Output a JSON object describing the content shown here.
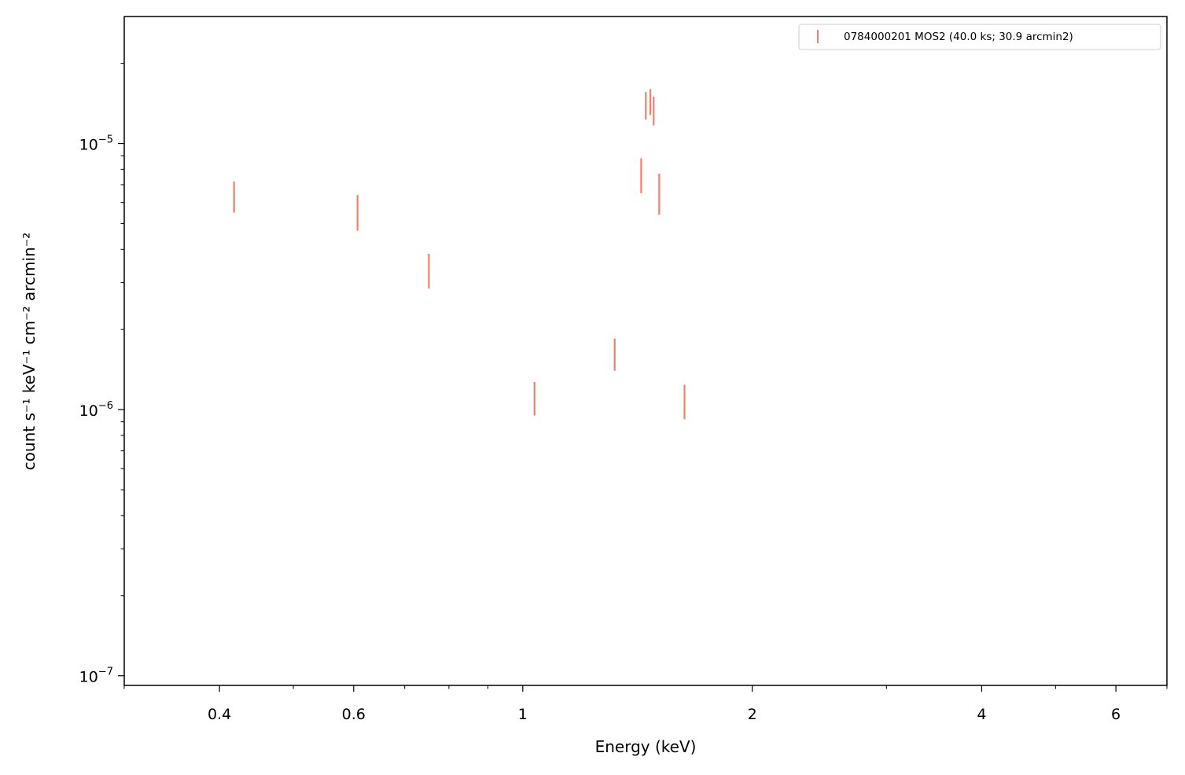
{
  "chart_data": {
    "type": "scatter",
    "xlabel": "Energy (keV)",
    "ylabel": "count s⁻¹ keV⁻¹ cm⁻² arcmin⁻²",
    "x_scale": "log",
    "y_scale": "log",
    "xlim": [
      0.3,
      7.0
    ],
    "ylim": [
      9.2e-08,
      3e-05
    ],
    "x_ticks": [
      {
        "value": 0.4,
        "label": "0.4"
      },
      {
        "value": 0.6,
        "label": "0.6"
      },
      {
        "value": 1,
        "label": "1"
      },
      {
        "value": 2,
        "label": "2"
      },
      {
        "value": 4,
        "label": "4"
      },
      {
        "value": 6,
        "label": "6"
      }
    ],
    "y_ticks": [
      {
        "value": 1e-07,
        "base": "10",
        "exp": "−7"
      },
      {
        "value": 1e-06,
        "base": "10",
        "exp": "−6"
      },
      {
        "value": 1e-05,
        "base": "10",
        "exp": "−5"
      }
    ],
    "legend_position": "top-right",
    "grid": false,
    "series": [
      {
        "name": "0784000201 MOS2 (40.0 ks; 30.9 arcmin2)",
        "color": "#f08068",
        "points": [
          {
            "x": 0.418,
            "y_low": 5.5e-06,
            "y_high": 7.2e-06
          },
          {
            "x": 0.607,
            "y_low": 4.7e-06,
            "y_high": 6.4e-06
          },
          {
            "x": 0.753,
            "y_low": 2.85e-06,
            "y_high": 3.85e-06
          },
          {
            "x": 1.036,
            "y_low": 9.5e-07,
            "y_high": 1.27e-06
          },
          {
            "x": 1.32,
            "y_low": 1.4e-06,
            "y_high": 1.85e-06
          },
          {
            "x": 1.43,
            "y_low": 6.5e-06,
            "y_high": 8.8e-06
          },
          {
            "x": 1.45,
            "y_low": 1.23e-05,
            "y_high": 1.56e-05
          },
          {
            "x": 1.47,
            "y_low": 1.28e-05,
            "y_high": 1.6e-05
          },
          {
            "x": 1.485,
            "y_low": 1.17e-05,
            "y_high": 1.5e-05
          },
          {
            "x": 1.51,
            "y_low": 5.4e-06,
            "y_high": 7.7e-06
          },
          {
            "x": 1.63,
            "y_low": 9.2e-07,
            "y_high": 1.24e-06
          }
        ]
      }
    ]
  }
}
